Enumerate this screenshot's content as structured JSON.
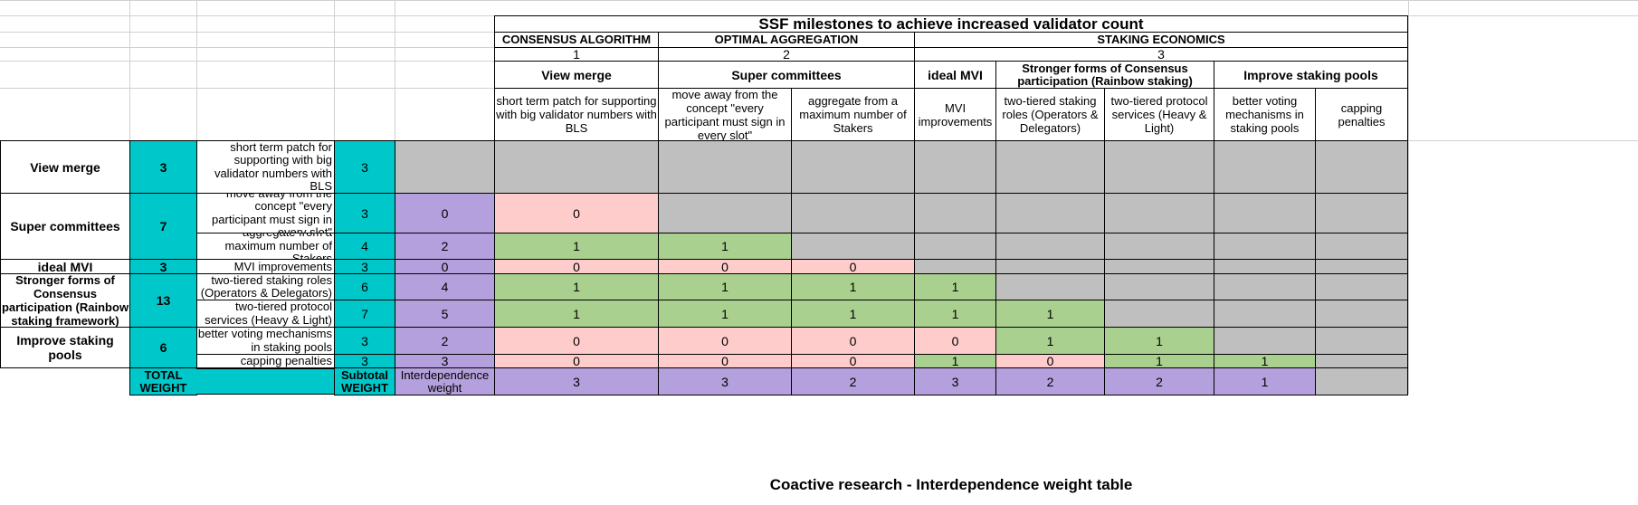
{
  "header": {
    "title": "SSF milestones to achieve increased validator count",
    "groups": [
      {
        "name": "CONSENSUS ALGORITHM",
        "num": "1"
      },
      {
        "name": "OPTIMAL AGGREGATION",
        "num": "2"
      },
      {
        "name": "STAKING ECONOMICS",
        "num": "3"
      }
    ],
    "subgroups": [
      "View merge",
      "Super committees",
      "ideal MVI",
      "Stronger forms of Consensus participation (Rainbow staking)",
      "Improve staking pools"
    ],
    "columns": [
      "short term patch for supporting with big validator numbers with BLS",
      "move away from the concept \"every participant must sign in every slot\"",
      "aggregate from a maximum number of Stakers",
      "MVI improvements",
      "two-tiered staking roles (Operators & Delegators)",
      "two-tiered protocol services (Heavy & Light)",
      "better voting mechanisms in staking pools",
      "capping penalties"
    ]
  },
  "groups": [
    {
      "name": "View merge",
      "weight": "3"
    },
    {
      "name": "Super committees",
      "weight": "7"
    },
    {
      "name": "ideal MVI",
      "weight": "3"
    },
    {
      "name": "Stronger forms of Consensus participation (Rainbow staking framework)",
      "weight": "13"
    },
    {
      "name": "Improve staking pools",
      "weight": "6"
    }
  ],
  "rows": [
    {
      "label": "short term patch for supporting with big validator numbers with BLS",
      "subtotal": "3",
      "interdep": "",
      "cells": []
    },
    {
      "label": "move away from the concept \"every participant must sign in every slot\"",
      "subtotal": "3",
      "interdep": "0",
      "cells": [
        "0"
      ]
    },
    {
      "label": "aggregate from a maximum number of Stakers",
      "subtotal": "4",
      "interdep": "2",
      "cells": [
        "1",
        "1"
      ]
    },
    {
      "label": "MVI improvements",
      "subtotal": "3",
      "interdep": "0",
      "cells": [
        "0",
        "0",
        "0"
      ]
    },
    {
      "label": "two-tiered staking roles (Operators & Delegators)",
      "subtotal": "6",
      "interdep": "4",
      "cells": [
        "1",
        "1",
        "1",
        "1"
      ]
    },
    {
      "label": "two-tiered protocol services (Heavy & Light)",
      "subtotal": "7",
      "interdep": "5",
      "cells": [
        "1",
        "1",
        "1",
        "1",
        "1"
      ]
    },
    {
      "label": "better voting mechanisms in staking pools",
      "subtotal": "3",
      "interdep": "2",
      "cells": [
        "0",
        "0",
        "0",
        "0",
        "1",
        "1"
      ]
    },
    {
      "label": "capping penalties",
      "subtotal": "3",
      "interdep": "3",
      "cells": [
        "0",
        "0",
        "0",
        "1",
        "0",
        "1",
        "1"
      ]
    }
  ],
  "totals": {
    "total_weight_label": "TOTAL WEIGHT",
    "subtotal_weight_label": "Subtotal WEIGHT",
    "interdep_label": "Interdependence weight",
    "values": [
      "3",
      "3",
      "2",
      "3",
      "2",
      "2",
      "1",
      ""
    ]
  },
  "footer": "Coactive research -  Interdependence weight table",
  "colors": {
    "teal": "#00c8ca",
    "purple": "#b4a0dc",
    "grey": "#bfbfbf",
    "pink": "#ffcccc",
    "green": "#a9d08e"
  }
}
